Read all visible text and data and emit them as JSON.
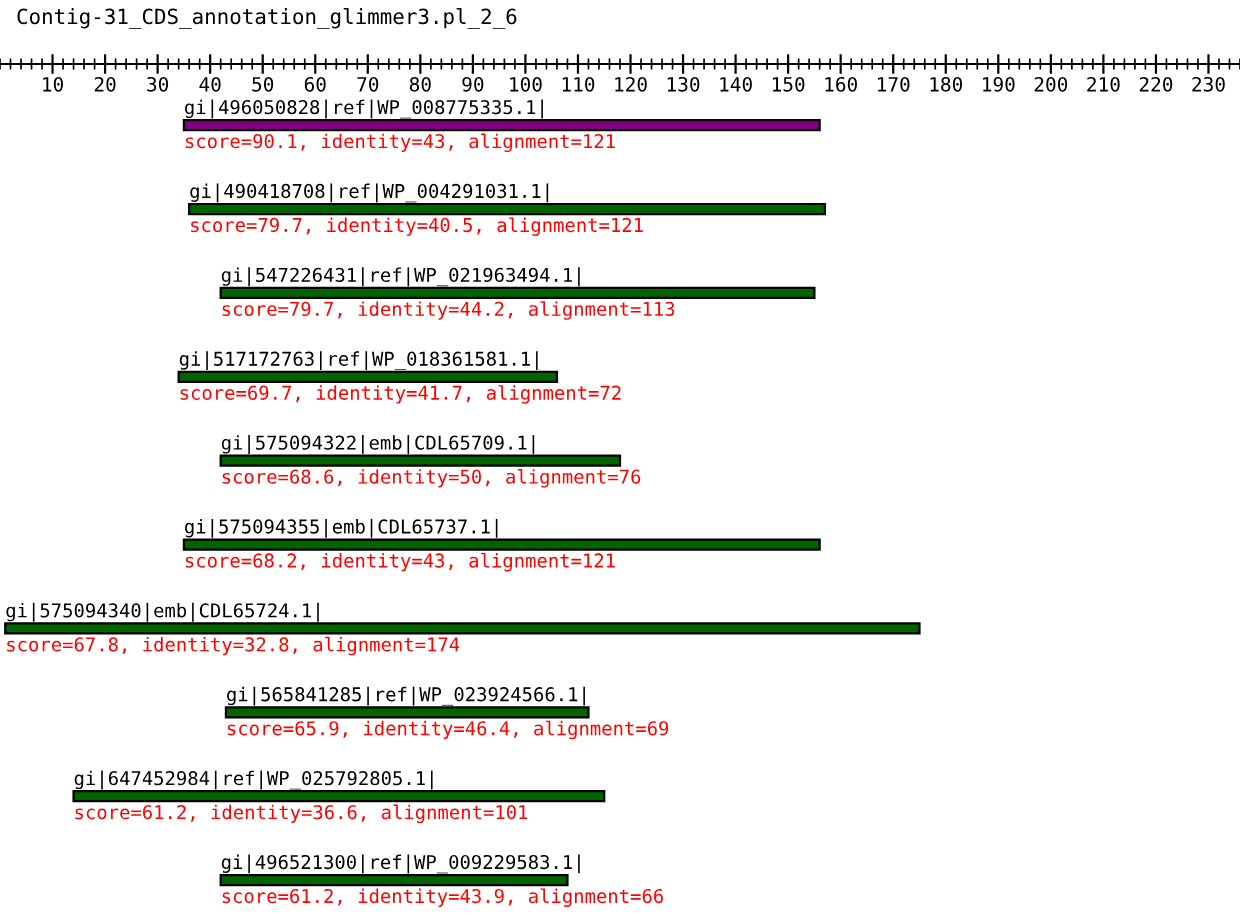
{
  "chart_data": {
    "type": "bar",
    "orientation": "horizontal",
    "title": "Contig-31_CDS_annotation_glimmer3.pl_2_6",
    "categories": [
      "gi|496050828|ref|WP_008775335.1|",
      "gi|490418708|ref|WP_004291031.1|",
      "gi|547226431|ref|WP_021963494.1|",
      "gi|517172763|ref|WP_018361581.1|",
      "gi|575094322|emb|CDL65709.1|",
      "gi|575094355|emb|CDL65737.1|",
      "gi|575094340|emb|CDL65724.1|",
      "gi|565841285|ref|WP_023924566.1|",
      "gi|647452984|ref|WP_025792805.1|",
      "gi|496521300|ref|WP_009229583.1|"
    ],
    "base": [
      35,
      36,
      42,
      34,
      42,
      35,
      1,
      43,
      14,
      42
    ],
    "values": [
      121,
      121,
      113,
      72,
      76,
      121,
      174,
      69,
      101,
      66
    ],
    "colors": [
      "#800080",
      "#006400",
      "#006400",
      "#006400",
      "#006400",
      "#006400",
      "#006400",
      "#006400",
      "#006400",
      "#006400"
    ],
    "value_labels": [
      "score=90.1, identity=43, alignment=121",
      "score=79.7, identity=40.5, alignment=121",
      "score=79.7, identity=44.2, alignment=113",
      "score=69.7, identity=41.7, alignment=72",
      "score=68.6, identity=50, alignment=76",
      "score=68.2, identity=43, alignment=121",
      "score=67.8, identity=32.8, alignment=174",
      "score=65.9, identity=46.4, alignment=69",
      "score=61.2, identity=36.6, alignment=101",
      "score=61.2, identity=43.9, alignment=66"
    ],
    "xlim": [
      0,
      236
    ],
    "xticks": [
      10,
      20,
      30,
      40,
      50,
      60,
      70,
      80,
      90,
      100,
      110,
      120,
      130,
      140,
      150,
      160,
      170,
      180,
      190,
      200,
      210,
      220,
      230
    ],
    "grid": false,
    "legend": false
  }
}
